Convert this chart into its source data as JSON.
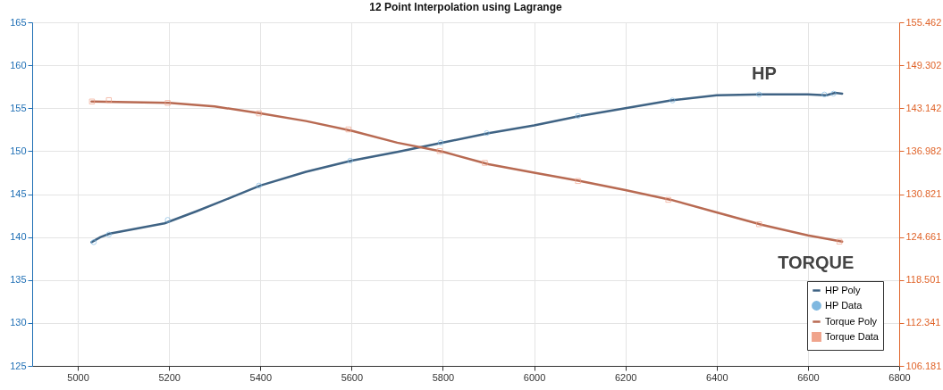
{
  "chart_data": {
    "type": "line",
    "title": "12 Point Interpolation using Lagrange",
    "xlim": [
      4900,
      6800
    ],
    "xticks": [
      5000,
      5200,
      5400,
      5600,
      5800,
      6000,
      6200,
      6400,
      6600,
      6800
    ],
    "ylim": [
      125,
      165
    ],
    "yticks": [
      125,
      130,
      135,
      140,
      145,
      150,
      155,
      160,
      165
    ],
    "y2lim": [
      106.181,
      155.462
    ],
    "y2ticks": [
      106.181,
      112.341,
      118.501,
      124.661,
      130.821,
      136.982,
      143.142,
      149.302,
      155.462
    ],
    "grid": true,
    "legend": "bottom right",
    "series": [
      {
        "name": "HP Poly",
        "axis": "y",
        "color": "#3f6384",
        "x": [
          5030,
          5050,
          5070,
          5130,
          5190,
          5260,
          5340,
          5400,
          5500,
          5600,
          5700,
          5800,
          5900,
          6000,
          6100,
          6200,
          6300,
          6400,
          6500,
          6600,
          6640,
          6660,
          6675
        ],
        "values": [
          139.4,
          140.0,
          140.4,
          141.0,
          141.6,
          143.0,
          144.7,
          146.0,
          147.6,
          148.9,
          149.9,
          151.0,
          152.1,
          153.0,
          154.1,
          155.0,
          155.9,
          156.5,
          156.6,
          156.6,
          156.5,
          156.8,
          156.7
        ]
      },
      {
        "name": "HP Data",
        "type": "scatter",
        "marker": "circle",
        "axis": "y",
        "color": "#7fb8e0",
        "x": [
          5035,
          5068,
          5197,
          5397,
          5597,
          5795,
          5896,
          6096,
          6303,
          6493,
          6636,
          6656
        ],
        "values": [
          139.4,
          140.3,
          142.0,
          146.0,
          148.9,
          151.0,
          152.1,
          154.1,
          155.9,
          156.6,
          156.6,
          156.7
        ]
      },
      {
        "name": "Torque Poly",
        "axis": "y2",
        "color": "#b86a52",
        "x": [
          5030,
          5200,
          5300,
          5400,
          5500,
          5600,
          5700,
          5800,
          5900,
          6000,
          6100,
          6200,
          6300,
          6400,
          6500,
          6600,
          6675
        ],
        "values": [
          144.1,
          143.9,
          143.4,
          142.4,
          141.3,
          139.9,
          138.2,
          136.9,
          135.1,
          133.9,
          132.7,
          131.4,
          130.0,
          128.2,
          126.4,
          124.9,
          124.0
        ]
      },
      {
        "name": "Torque Data",
        "type": "scatter",
        "marker": "square",
        "axis": "y2",
        "color": "#f0a48c",
        "x": [
          5031,
          5068,
          5197,
          5397,
          5593,
          5793,
          5892,
          6096,
          6294,
          6493,
          6669
        ],
        "values": [
          144.1,
          144.3,
          143.9,
          142.4,
          140.1,
          137.0,
          135.3,
          132.7,
          130.0,
          126.5,
          124.0
        ]
      }
    ],
    "annotations": [
      "HP",
      "TORQUE"
    ]
  }
}
